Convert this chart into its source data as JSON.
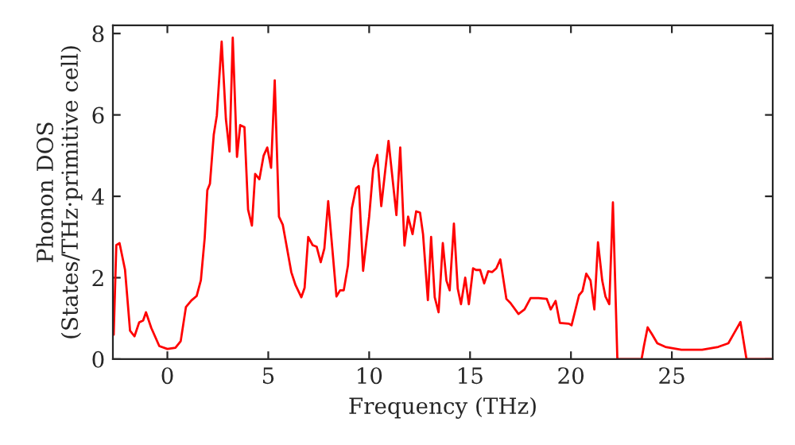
{
  "chart_data": {
    "type": "line",
    "xlabel": "Frequency (THz)",
    "ylabel": "Phonon DOS\n(States/THz·primitive cell)",
    "xlim": [
      -2.7,
      30
    ],
    "ylim": [
      0,
      8.2
    ],
    "xticks": [
      0,
      5,
      10,
      15,
      20,
      25
    ],
    "yticks": [
      0,
      2,
      4,
      6,
      8
    ],
    "grid": false,
    "legend": false,
    "series": [
      {
        "color": "#ff0000",
        "x": [
          -2.66,
          -2.53,
          -2.37,
          -2.1,
          -1.85,
          -1.63,
          -1.4,
          -1.2,
          -1.06,
          -0.8,
          -0.4,
          0,
          0.4,
          0.66,
          0.92,
          1.19,
          1.45,
          1.66,
          1.85,
          1.98,
          2.11,
          2.3,
          2.45,
          2.69,
          2.9,
          3.08,
          3.24,
          3.45,
          3.61,
          3.82,
          4.0,
          4.19,
          4.35,
          4.56,
          4.77,
          4.95,
          5.14,
          5.32,
          5.53,
          5.72,
          5.93,
          6.14,
          6.35,
          6.64,
          6.8,
          6.98,
          7.2,
          7.4,
          7.6,
          7.78,
          7.97,
          8.38,
          8.56,
          8.74,
          8.95,
          9.14,
          9.35,
          9.49,
          9.7,
          10.0,
          10.2,
          10.4,
          10.6,
          10.96,
          11.35,
          11.54,
          11.75,
          11.93,
          12.15,
          12.33,
          12.52,
          12.67,
          12.91,
          13.07,
          13.25,
          13.44,
          13.65,
          13.83,
          13.99,
          14.2,
          14.39,
          14.55,
          14.76,
          14.94,
          15.15,
          15.3,
          15.5,
          15.7,
          15.9,
          16.1,
          16.3,
          16.5,
          16.8,
          17.0,
          17.4,
          17.7,
          18.0,
          18.4,
          18.8,
          19.0,
          19.24,
          19.45,
          19.9,
          20.03,
          20.4,
          20.57,
          20.76,
          20.97,
          21.16,
          21.34,
          21.55,
          21.71,
          21.9,
          22.08,
          22.3,
          23.5,
          23.62,
          23.8,
          24.02,
          24.28,
          24.68,
          25.47,
          26.5,
          27.3,
          27.8,
          28.1,
          28.4,
          28.7,
          30.0
        ],
        "values": [
          0.6,
          2.8,
          2.85,
          2.2,
          0.7,
          0.56,
          0.9,
          0.95,
          1.15,
          0.77,
          0.32,
          0.25,
          0.28,
          0.44,
          1.28,
          1.44,
          1.55,
          1.94,
          2.98,
          4.15,
          4.31,
          5.52,
          5.98,
          7.8,
          5.9,
          5.1,
          7.9,
          4.97,
          5.75,
          5.7,
          3.67,
          3.28,
          4.55,
          4.42,
          5.0,
          5.2,
          4.7,
          6.85,
          3.5,
          3.3,
          2.72,
          2.14,
          1.82,
          1.52,
          1.75,
          3.0,
          2.8,
          2.76,
          2.38,
          2.72,
          3.88,
          1.54,
          1.69,
          1.69,
          2.3,
          3.7,
          4.2,
          4.25,
          2.17,
          3.5,
          4.67,
          5.02,
          3.76,
          5.36,
          3.54,
          5.2,
          2.79,
          3.5,
          3.07,
          3.63,
          3.6,
          3.07,
          1.45,
          3.0,
          1.52,
          1.15,
          2.85,
          1.93,
          1.69,
          3.33,
          1.73,
          1.35,
          2.0,
          1.35,
          2.23,
          2.19,
          2.19,
          1.86,
          2.16,
          2.14,
          2.23,
          2.45,
          1.48,
          1.38,
          1.11,
          1.22,
          1.5,
          1.5,
          1.48,
          1.22,
          1.43,
          0.89,
          0.87,
          0.83,
          1.57,
          1.67,
          2.1,
          1.93,
          1.22,
          2.87,
          1.93,
          1.54,
          1.35,
          3.85,
          0,
          0,
          0.33,
          0.78,
          0.61,
          0.39,
          0.3,
          0.23,
          0.23,
          0.3,
          0.39,
          0.65,
          0.91,
          0,
          0
        ]
      }
    ]
  }
}
